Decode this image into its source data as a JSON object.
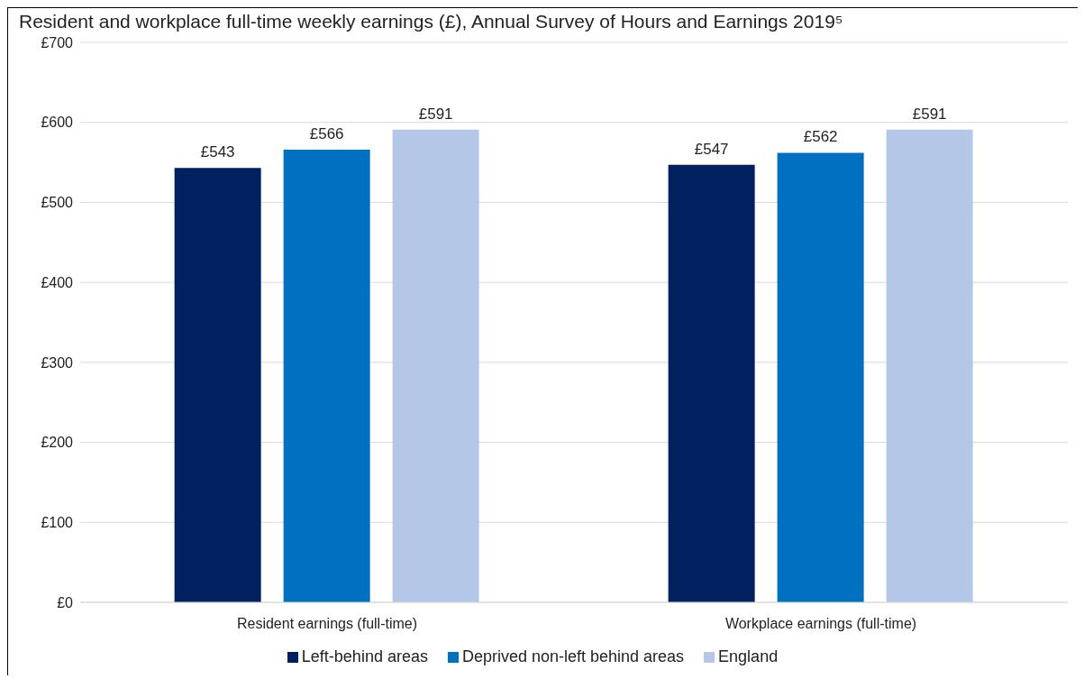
{
  "chart_data": {
    "type": "bar",
    "title": "Resident and workplace full-time weekly earnings (£), Annual Survey of Hours and Earnings 2019⁵",
    "categories": [
      "Resident earnings (full-time)",
      "Workplace earnings (full-time)"
    ],
    "series": [
      {
        "name": "Left-behind areas",
        "color": "#002060",
        "values": [
          543,
          547
        ],
        "value_labels": [
          "£543",
          "£547"
        ]
      },
      {
        "name": "Deprived non-left behind areas",
        "color": "#0070c0",
        "values": [
          566,
          562
        ],
        "value_labels": [
          "£566",
          "£562"
        ]
      },
      {
        "name": "England",
        "color": "#b4c7e7",
        "values": [
          591,
          591
        ],
        "value_labels": [
          "£591",
          "£591"
        ]
      }
    ],
    "ylim": [
      0,
      700
    ],
    "yticks": [
      {
        "value": 0,
        "label": "£0"
      },
      {
        "value": 100,
        "label": "£100"
      },
      {
        "value": 200,
        "label": "£200"
      },
      {
        "value": 300,
        "label": "£300"
      },
      {
        "value": 400,
        "label": "£400"
      },
      {
        "value": 500,
        "label": "£500"
      },
      {
        "value": 600,
        "label": "£600"
      },
      {
        "value": 700,
        "label": "£700"
      }
    ],
    "grid": "y",
    "legend": "bottom"
  }
}
